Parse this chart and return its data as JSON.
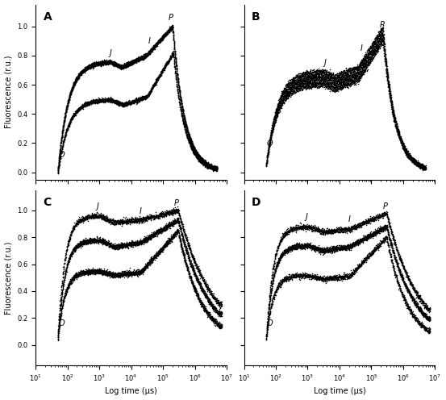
{
  "panels": [
    "A",
    "B",
    "C",
    "D"
  ],
  "xlabel": "Log time (μs)",
  "ylabel": "Fluorescence (r.u.)",
  "xlim": [
    10,
    10000000
  ],
  "ylim_AB": [
    -0.05,
    1.15
  ],
  "ylim_CD": [
    -0.15,
    1.15
  ],
  "yticks_AB": [
    0,
    0.2,
    0.4,
    0.6,
    0.8,
    1.0
  ],
  "yticks_CD": [
    0,
    0.2,
    0.4,
    0.6,
    0.8,
    1.0
  ],
  "marker_size": 1.2,
  "marker_color": "black",
  "background": "white",
  "panel_label_fontsize": 10,
  "axis_label_fontsize": 7,
  "tick_fontsize": 6,
  "annotation_fontsize": 7
}
